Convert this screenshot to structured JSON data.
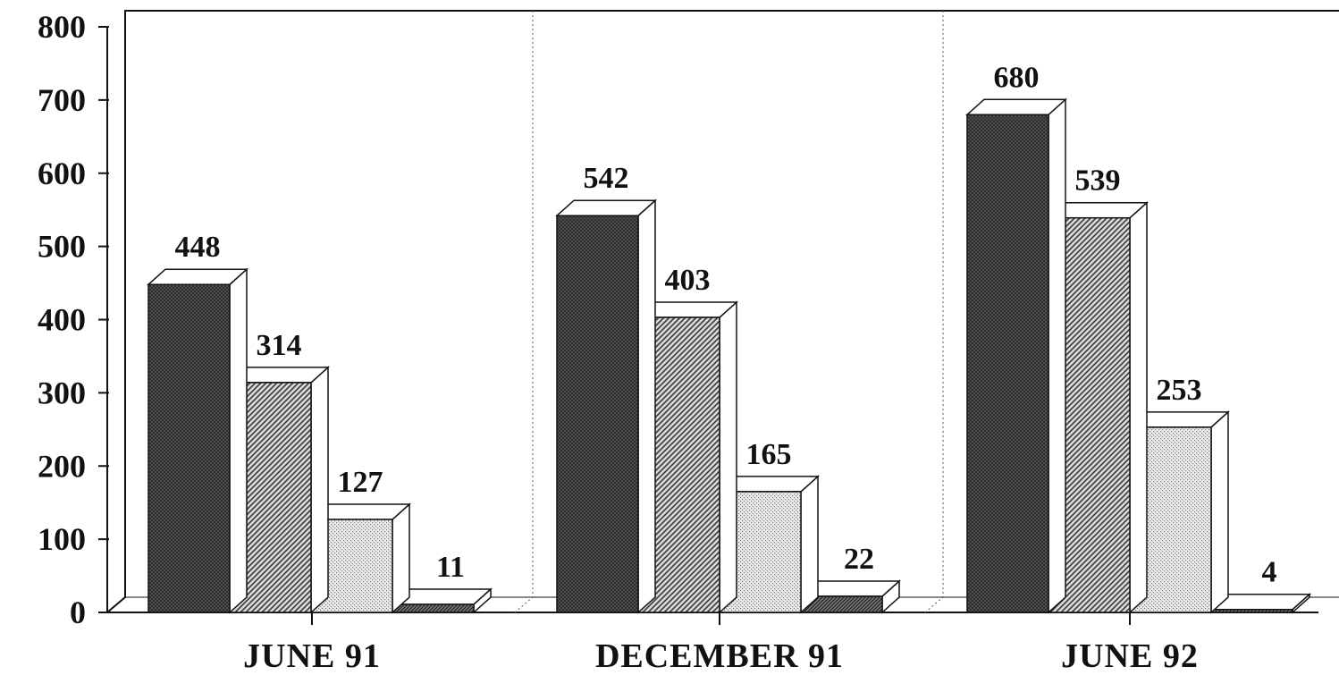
{
  "chart_data": {
    "type": "bar",
    "categories": [
      "JUNE 91",
      "DECEMBER 91",
      "JUNE 92"
    ],
    "series": [
      {
        "values": [
          448,
          542,
          680
        ],
        "pattern": "dark-crosshatch"
      },
      {
        "values": [
          314,
          403,
          539
        ],
        "pattern": "diagonal-hatch"
      },
      {
        "values": [
          127,
          165,
          253
        ],
        "pattern": "light-dots"
      },
      {
        "values": [
          11,
          22,
          4
        ],
        "pattern": "dense-diagonal"
      }
    ],
    "data_labels": [
      [
        "448",
        "314",
        "127",
        "11"
      ],
      [
        "542",
        "403",
        "165",
        "22"
      ],
      [
        "680",
        "539",
        "253",
        "4"
      ]
    ],
    "yticks": [
      "0",
      "100",
      "200",
      "300",
      "400",
      "500",
      "600",
      "700",
      "800"
    ],
    "ylim": [
      0,
      800
    ],
    "title": "",
    "xlabel": "",
    "ylabel": "",
    "style": "3d-bar",
    "grid": "vertical dotted separators between categories",
    "colors": {
      "ink": "#111111",
      "background": "#ffffff"
    }
  }
}
